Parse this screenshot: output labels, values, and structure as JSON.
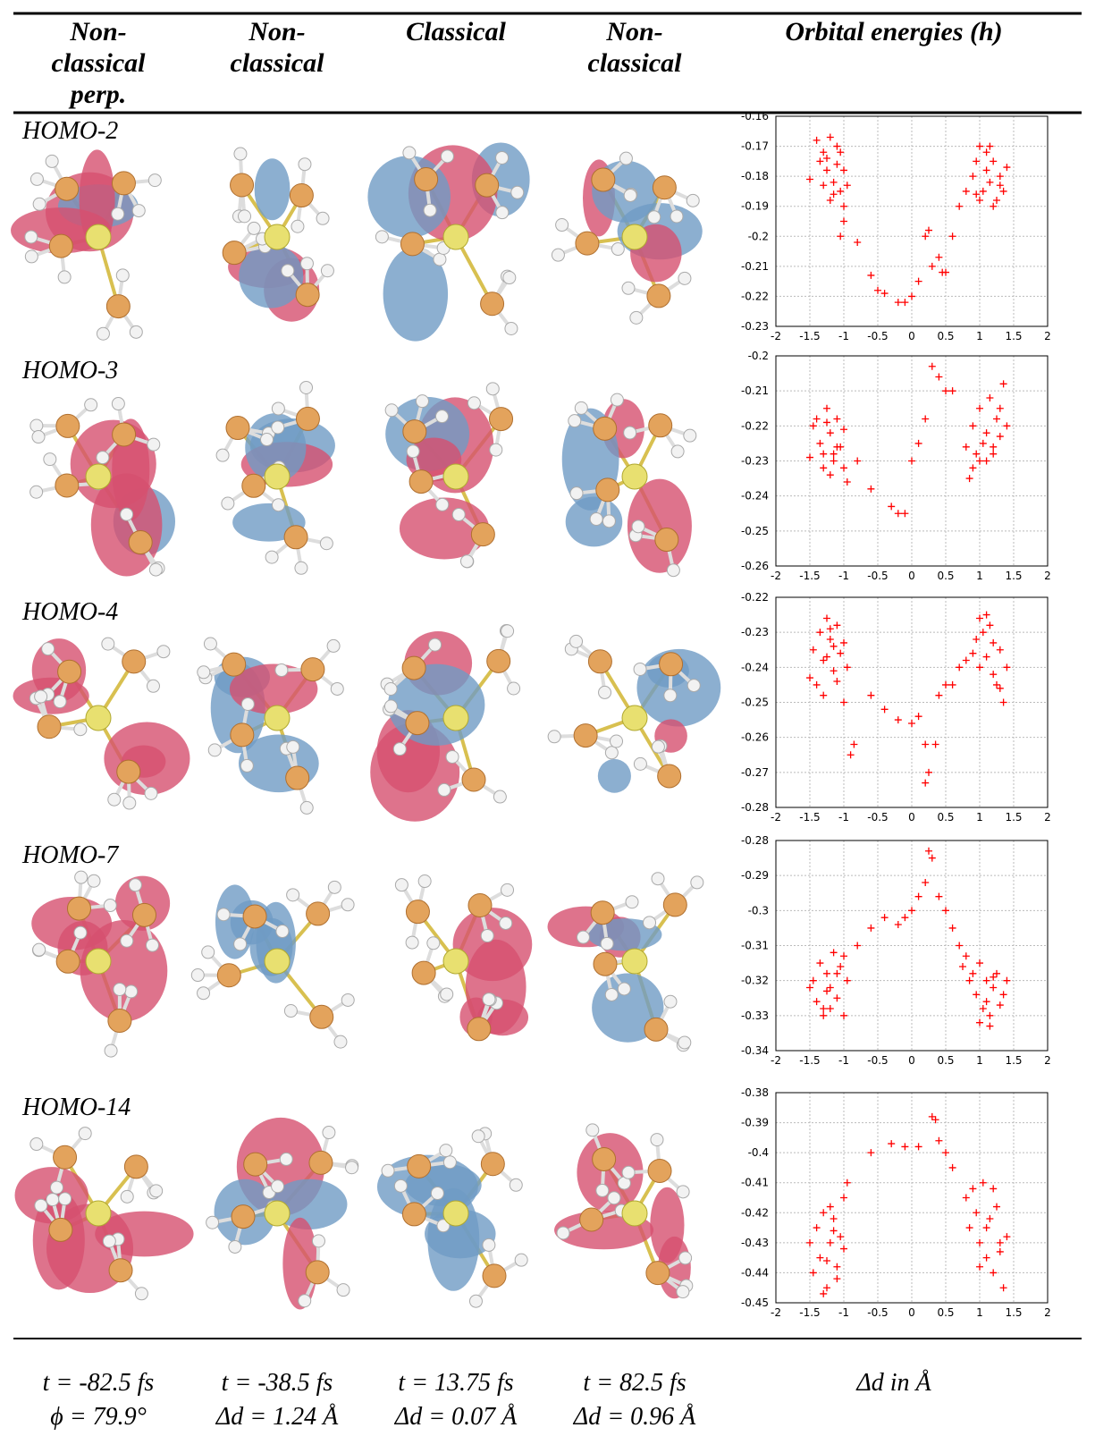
{
  "header": {
    "columns": [
      [
        "Non-",
        "classical",
        "perp."
      ],
      [
        "Non-",
        "classical"
      ],
      [
        "Classical"
      ],
      [
        "Non-",
        "classical"
      ],
      [
        "Orbital energies (h)"
      ]
    ]
  },
  "rows": [
    "HOMO-2",
    "HOMO-3",
    "HOMO-4",
    "HOMO-7",
    "HOMO-14"
  ],
  "footer": [
    [
      "t = -82.5 fs",
      "ϕ = 79.9°"
    ],
    [
      "t = -38.5 fs",
      "Δd = 1.24 Å"
    ],
    [
      "t = 13.75 fs",
      "Δd = 0.07 Å"
    ],
    [
      "t = 82.5 fs",
      "Δd = 0.96 Å"
    ],
    [
      "Δd in Å"
    ]
  ],
  "chart_data": [
    {
      "type": "scatter",
      "color": "#ff0000",
      "grid": true,
      "xlim": [
        -2,
        2
      ],
      "xticks": [
        -2,
        -1.5,
        -1,
        -0.5,
        0,
        0.5,
        1,
        1.5,
        2
      ],
      "ylim": [
        -0.23,
        -0.16
      ],
      "yticks": [
        -0.23,
        -0.22,
        -0.21,
        -0.2,
        -0.19,
        -0.18,
        -0.17,
        -0.16
      ],
      "x": [
        -1.5,
        -1.4,
        -1.35,
        -1.3,
        -1.25,
        -1.2,
        -1.15,
        -1.1,
        -1.05,
        -1.0,
        -0.95,
        -1.3,
        -1.2,
        -1.1,
        -1.0,
        -1.25,
        -1.15,
        -1.05,
        -1.0,
        -1.05,
        -0.8,
        -0.6,
        -0.5,
        -0.4,
        -0.2,
        -0.1,
        0,
        0.1,
        0.2,
        0.25,
        0.3,
        0.4,
        0.45,
        0.5,
        0.6,
        0.7,
        0.8,
        0.9,
        0.95,
        1.0,
        1.05,
        1.1,
        1.15,
        1.2,
        1.25,
        1.3,
        1.35,
        1.4,
        1.0,
        1.1,
        1.2,
        1.3,
        0.95,
        1.15
      ],
      "values": [
        -0.181,
        -0.168,
        -0.175,
        -0.172,
        -0.178,
        -0.167,
        -0.182,
        -0.17,
        -0.185,
        -0.178,
        -0.183,
        -0.183,
        -0.188,
        -0.176,
        -0.19,
        -0.174,
        -0.186,
        -0.172,
        -0.195,
        -0.2,
        -0.202,
        -0.213,
        -0.218,
        -0.219,
        -0.222,
        -0.222,
        -0.22,
        -0.215,
        -0.2,
        -0.198,
        -0.21,
        -0.207,
        -0.212,
        -0.212,
        -0.2,
        -0.19,
        -0.185,
        -0.18,
        -0.175,
        -0.17,
        -0.185,
        -0.178,
        -0.182,
        -0.175,
        -0.188,
        -0.18,
        -0.185,
        -0.177,
        -0.188,
        -0.172,
        -0.19,
        -0.183,
        -0.186,
        -0.17
      ]
    },
    {
      "type": "scatter",
      "color": "#ff0000",
      "grid": true,
      "xlim": [
        -2,
        2
      ],
      "xticks": [
        -2,
        -1.5,
        -1,
        -0.5,
        0,
        0.5,
        1,
        1.5,
        2
      ],
      "ylim": [
        -0.26,
        -0.2
      ],
      "yticks": [
        -0.26,
        -0.25,
        -0.24,
        -0.23,
        -0.22,
        -0.21,
        -0.2
      ],
      "x": [
        -1.5,
        -1.45,
        -1.4,
        -1.35,
        -1.3,
        -1.25,
        -1.2,
        -1.15,
        -1.1,
        -1.05,
        -1.0,
        -0.95,
        -1.3,
        -1.2,
        -1.1,
        -1.0,
        -1.25,
        -1.15,
        -0.8,
        -0.6,
        -0.3,
        -0.2,
        -0.1,
        0,
        0.1,
        0.2,
        0.3,
        0.4,
        0.5,
        0.6,
        0.8,
        0.85,
        0.9,
        0.95,
        1.0,
        1.05,
        1.1,
        1.15,
        1.2,
        1.25,
        1.3,
        1.35,
        1.4,
        1.0,
        1.1,
        1.2,
        1.3,
        0.9
      ],
      "values": [
        -0.229,
        -0.22,
        -0.218,
        -0.225,
        -0.228,
        -0.215,
        -0.222,
        -0.23,
        -0.218,
        -0.226,
        -0.232,
        -0.236,
        -0.232,
        -0.234,
        -0.226,
        -0.221,
        -0.219,
        -0.228,
        -0.23,
        -0.238,
        -0.243,
        -0.245,
        -0.245,
        -0.23,
        -0.225,
        -0.218,
        -0.203,
        -0.206,
        -0.21,
        -0.21,
        -0.226,
        -0.235,
        -0.22,
        -0.228,
        -0.215,
        -0.225,
        -0.222,
        -0.212,
        -0.226,
        -0.218,
        -0.223,
        -0.208,
        -0.22,
        -0.23,
        -0.23,
        -0.228,
        -0.215,
        -0.232
      ]
    },
    {
      "type": "scatter",
      "color": "#ff0000",
      "grid": true,
      "xlim": [
        -2,
        2
      ],
      "xticks": [
        -2,
        -1.5,
        -1,
        -0.5,
        0,
        0.5,
        1,
        1.5,
        2
      ],
      "ylim": [
        -0.28,
        -0.22
      ],
      "yticks": [
        -0.28,
        -0.27,
        -0.26,
        -0.25,
        -0.24,
        -0.23,
        -0.22
      ],
      "x": [
        -1.5,
        -1.45,
        -1.4,
        -1.35,
        -1.3,
        -1.25,
        -1.2,
        -1.15,
        -1.1,
        -1.05,
        -1.0,
        -0.95,
        -1.3,
        -1.2,
        -1.1,
        -1.0,
        -1.25,
        -1.15,
        -0.9,
        -0.85,
        -0.6,
        -0.4,
        -0.2,
        0,
        0.1,
        0.2,
        0.25,
        0.2,
        0.35,
        0.4,
        0.5,
        0.6,
        0.7,
        0.8,
        0.9,
        0.95,
        1.0,
        1.05,
        1.1,
        1.15,
        1.2,
        1.25,
        1.3,
        1.35,
        1.4,
        1.0,
        1.1,
        1.2,
        1.3
      ],
      "values": [
        -0.243,
        -0.235,
        -0.245,
        -0.23,
        -0.238,
        -0.226,
        -0.232,
        -0.241,
        -0.228,
        -0.236,
        -0.233,
        -0.24,
        -0.248,
        -0.229,
        -0.244,
        -0.25,
        -0.237,
        -0.234,
        -0.265,
        -0.262,
        -0.248,
        -0.252,
        -0.255,
        -0.256,
        -0.254,
        -0.262,
        -0.27,
        -0.273,
        -0.262,
        -0.248,
        -0.245,
        -0.245,
        -0.24,
        -0.238,
        -0.236,
        -0.232,
        -0.226,
        -0.23,
        -0.237,
        -0.228,
        -0.242,
        -0.245,
        -0.235,
        -0.25,
        -0.24,
        -0.24,
        -0.225,
        -0.233,
        -0.246
      ]
    },
    {
      "type": "scatter",
      "color": "#ff0000",
      "grid": true,
      "xlim": [
        -2,
        2
      ],
      "xticks": [
        -2,
        -1.5,
        -1,
        -0.5,
        0,
        0.5,
        1,
        1.5,
        2
      ],
      "ylim": [
        -0.34,
        -0.28
      ],
      "yticks": [
        -0.34,
        -0.33,
        -0.32,
        -0.31,
        -0.3,
        -0.29,
        -0.28
      ],
      "x": [
        -1.5,
        -1.45,
        -1.4,
        -1.35,
        -1.3,
        -1.25,
        -1.2,
        -1.15,
        -1.1,
        -1.05,
        -1.0,
        -0.95,
        -1.3,
        -1.2,
        -1.1,
        -1.0,
        -1.25,
        -0.8,
        -0.6,
        -0.4,
        -0.2,
        -0.1,
        0,
        0.1,
        0.2,
        0.25,
        0.3,
        0.4,
        0.5,
        0.6,
        0.7,
        0.75,
        0.8,
        0.85,
        0.9,
        0.95,
        1.0,
        1.05,
        1.1,
        1.15,
        1.2,
        1.25,
        1.3,
        1.35,
        1.4,
        1.0,
        1.1,
        1.2,
        1.15
      ],
      "values": [
        -0.322,
        -0.32,
        -0.326,
        -0.315,
        -0.328,
        -0.318,
        -0.322,
        -0.312,
        -0.325,
        -0.316,
        -0.33,
        -0.32,
        -0.33,
        -0.328,
        -0.318,
        -0.313,
        -0.323,
        -0.31,
        -0.305,
        -0.302,
        -0.304,
        -0.302,
        -0.3,
        -0.296,
        -0.292,
        -0.283,
        -0.285,
        -0.296,
        -0.3,
        -0.305,
        -0.31,
        -0.316,
        -0.313,
        -0.32,
        -0.318,
        -0.324,
        -0.315,
        -0.328,
        -0.32,
        -0.33,
        -0.322,
        -0.318,
        -0.327,
        -0.324,
        -0.32,
        -0.332,
        -0.326,
        -0.319,
        -0.333
      ]
    },
    {
      "type": "scatter",
      "color": "#ff0000",
      "grid": true,
      "xlim": [
        -2,
        2
      ],
      "xticks": [
        -2,
        -1.5,
        -1,
        -0.5,
        0,
        0.5,
        1,
        1.5,
        2
      ],
      "ylim": [
        -0.45,
        -0.38
      ],
      "yticks": [
        -0.45,
        -0.44,
        -0.43,
        -0.42,
        -0.41,
        -0.4,
        -0.39,
        -0.38
      ],
      "x": [
        -1.5,
        -1.45,
        -1.4,
        -1.35,
        -1.3,
        -1.25,
        -1.2,
        -1.15,
        -1.1,
        -1.05,
        -1.0,
        -0.95,
        -1.3,
        -1.2,
        -1.1,
        -1.0,
        -1.25,
        -1.15,
        -0.6,
        -0.3,
        -0.1,
        0.1,
        0.3,
        0.35,
        0.4,
        0.5,
        0.6,
        0.8,
        0.85,
        0.9,
        0.95,
        1.0,
        1.05,
        1.1,
        1.15,
        1.2,
        1.25,
        1.3,
        1.35,
        1.4,
        1.0,
        1.1,
        1.2,
        1.3
      ],
      "values": [
        -0.43,
        -0.44,
        -0.425,
        -0.435,
        -0.42,
        -0.445,
        -0.43,
        -0.422,
        -0.438,
        -0.428,
        -0.415,
        -0.41,
        -0.447,
        -0.418,
        -0.442,
        -0.432,
        -0.436,
        -0.426,
        -0.4,
        -0.397,
        -0.398,
        -0.398,
        -0.388,
        -0.389,
        -0.396,
        -0.4,
        -0.405,
        -0.415,
        -0.425,
        -0.412,
        -0.42,
        -0.43,
        -0.41,
        -0.435,
        -0.422,
        -0.44,
        -0.418,
        -0.43,
        -0.445,
        -0.428,
        -0.438,
        -0.425,
        -0.412,
        -0.433
      ]
    }
  ]
}
